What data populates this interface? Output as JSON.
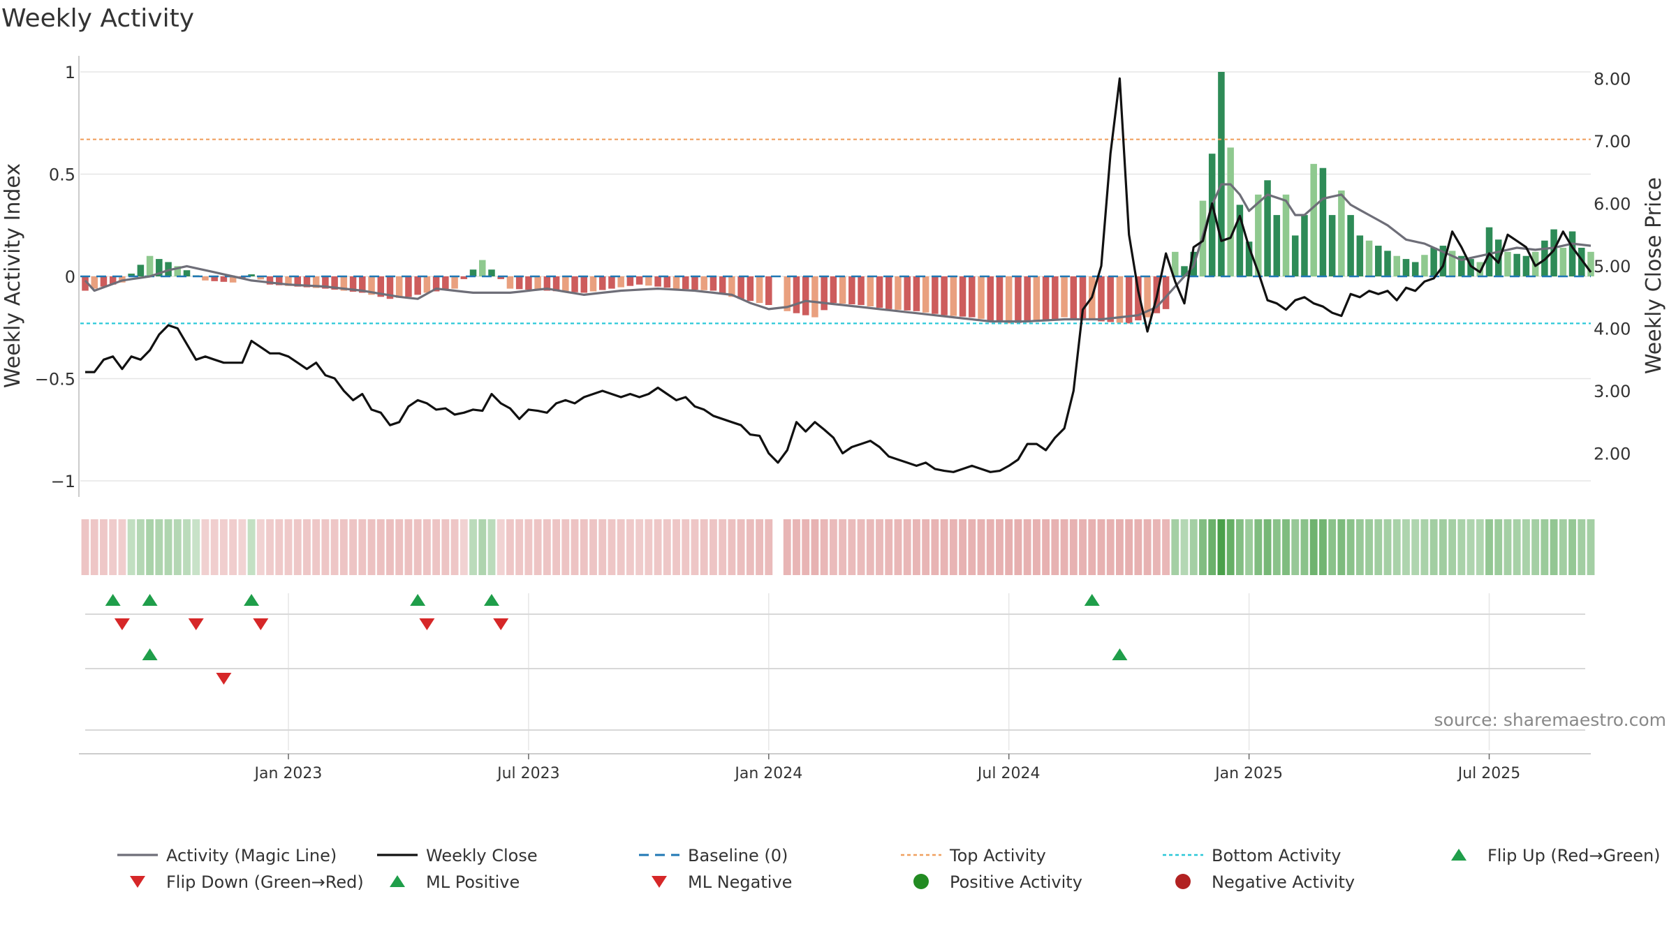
{
  "colors": {
    "pos_dark": "#2e8b57",
    "pos_light": "#8fc98f",
    "neg_dark": "#cd5c5c",
    "neg_light": "#e9a07f",
    "magic_line": "#6e6e78",
    "close_line": "#111111",
    "baseline": "#1f77b4",
    "top": "#f0a060",
    "bottom": "#2bc8d8",
    "flip_up": "#1f9e4a",
    "flip_down": "#d62728",
    "pos_dot": "#228b22",
    "neg_dot": "#b22222",
    "grid": "#e6e6e6",
    "text": "#333333",
    "source": "#888888"
  },
  "chart_data": {
    "type": "bar+line",
    "title": "Weekly Activity",
    "ylabel_left": "Weekly Activity Index",
    "ylabel_right": "Weekly Close Price",
    "left_ticks": [
      {
        "v": 1,
        "label": "1"
      },
      {
        "v": 0.5,
        "label": "0.5"
      },
      {
        "v": 0,
        "label": "0"
      },
      {
        "v": -0.5,
        "label": "−0.5"
      },
      {
        "v": -1,
        "label": "−1"
      }
    ],
    "right_ticks": [
      {
        "v": 8,
        "label": "8.00"
      },
      {
        "v": 7,
        "label": "7.00"
      },
      {
        "v": 6,
        "label": "6.00"
      },
      {
        "v": 5,
        "label": "5.00"
      },
      {
        "v": 4,
        "label": "4.00"
      },
      {
        "v": 3,
        "label": "3.00"
      },
      {
        "v": 2,
        "label": "2.00"
      }
    ],
    "x_ticks": [
      {
        "w": 22,
        "label": "Jan 2023"
      },
      {
        "w": 48,
        "label": "Jul 2023"
      },
      {
        "w": 74,
        "label": "Jan 2024"
      },
      {
        "w": 100,
        "label": "Jul 2024"
      },
      {
        "w": 126,
        "label": "Jan 2025"
      },
      {
        "w": 152,
        "label": "Jul 2025"
      }
    ],
    "top_activity": 0.67,
    "bottom_activity": -0.23,
    "baseline": 0,
    "activity_keys": [
      [
        0,
        -0.07
      ],
      [
        4,
        -0.03
      ],
      [
        7,
        0.1
      ],
      [
        9,
        0.07
      ],
      [
        11,
        0.03
      ],
      [
        13,
        -0.02
      ],
      [
        16,
        -0.03
      ],
      [
        18,
        0.01
      ],
      [
        20,
        -0.04
      ],
      [
        23,
        -0.05
      ],
      [
        26,
        -0.06
      ],
      [
        30,
        -0.08
      ],
      [
        33,
        -0.11
      ],
      [
        35,
        -0.1
      ],
      [
        37,
        -0.08
      ],
      [
        40,
        -0.06
      ],
      [
        43,
        0.08
      ],
      [
        46,
        -0.06
      ],
      [
        50,
        -0.07
      ],
      [
        54,
        -0.08
      ],
      [
        57,
        -0.06
      ],
      [
        60,
        -0.04
      ],
      [
        64,
        -0.06
      ],
      [
        68,
        -0.07
      ],
      [
        70,
        -0.1
      ],
      [
        72,
        -0.12
      ],
      [
        74,
        -0.14
      ],
      [
        76,
        -0.17
      ],
      [
        79,
        -0.2
      ],
      [
        81,
        -0.13
      ],
      [
        84,
        -0.14
      ],
      [
        87,
        -0.16
      ],
      [
        90,
        -0.17
      ],
      [
        93,
        -0.19
      ],
      [
        96,
        -0.2
      ],
      [
        100,
        -0.23
      ],
      [
        104,
        -0.22
      ],
      [
        106,
        -0.2
      ],
      [
        110,
        -0.22
      ],
      [
        113,
        -0.23
      ],
      [
        115,
        -0.2
      ],
      [
        117,
        -0.16
      ],
      [
        118,
        0.12
      ],
      [
        119,
        0.05
      ],
      [
        120,
        0.12
      ],
      [
        121,
        0.37
      ],
      [
        122,
        0.6
      ],
      [
        123,
        1.0
      ],
      [
        124,
        0.63
      ],
      [
        125,
        0.35
      ],
      [
        126,
        0.17
      ],
      [
        127,
        0.4
      ],
      [
        128,
        0.47
      ],
      [
        129,
        0.3
      ],
      [
        130,
        0.4
      ],
      [
        131,
        0.2
      ],
      [
        132,
        0.3
      ],
      [
        133,
        0.55
      ],
      [
        134,
        0.53
      ],
      [
        135,
        0.3
      ],
      [
        136,
        0.42
      ],
      [
        137,
        0.3
      ],
      [
        138,
        0.2
      ],
      [
        140,
        0.15
      ],
      [
        142,
        0.1
      ],
      [
        144,
        0.07
      ],
      [
        146,
        0.14
      ],
      [
        147,
        0.15
      ],
      [
        149,
        0.1
      ],
      [
        151,
        0.07
      ],
      [
        152,
        0.24
      ],
      [
        154,
        0.12
      ],
      [
        156,
        0.1
      ],
      [
        157,
        0.12
      ],
      [
        159,
        0.23
      ],
      [
        160,
        0.14
      ],
      [
        161,
        0.22
      ],
      [
        162,
        0.14
      ],
      [
        163,
        0.12
      ]
    ],
    "magic_keys": [
      [
        0,
        -0.02
      ],
      [
        1,
        -0.07
      ],
      [
        4,
        -0.02
      ],
      [
        7,
        0.0
      ],
      [
        9,
        0.03
      ],
      [
        11,
        0.05
      ],
      [
        14,
        0.02
      ],
      [
        18,
        -0.02
      ],
      [
        22,
        -0.04
      ],
      [
        26,
        -0.05
      ],
      [
        30,
        -0.07
      ],
      [
        34,
        -0.1
      ],
      [
        36,
        -0.11
      ],
      [
        38,
        -0.06
      ],
      [
        42,
        -0.08
      ],
      [
        46,
        -0.08
      ],
      [
        50,
        -0.06
      ],
      [
        54,
        -0.09
      ],
      [
        58,
        -0.07
      ],
      [
        62,
        -0.06
      ],
      [
        66,
        -0.07
      ],
      [
        70,
        -0.09
      ],
      [
        72,
        -0.13
      ],
      [
        74,
        -0.16
      ],
      [
        76,
        -0.15
      ],
      [
        78,
        -0.12
      ],
      [
        82,
        -0.14
      ],
      [
        86,
        -0.16
      ],
      [
        90,
        -0.18
      ],
      [
        94,
        -0.2
      ],
      [
        98,
        -0.22
      ],
      [
        102,
        -0.22
      ],
      [
        106,
        -0.21
      ],
      [
        110,
        -0.21
      ],
      [
        114,
        -0.19
      ],
      [
        116,
        -0.15
      ],
      [
        118,
        -0.05
      ],
      [
        120,
        0.05
      ],
      [
        122,
        0.35
      ],
      [
        123,
        0.45
      ],
      [
        124,
        0.45
      ],
      [
        125,
        0.4
      ],
      [
        126,
        0.32
      ],
      [
        128,
        0.4
      ],
      [
        130,
        0.37
      ],
      [
        131,
        0.3
      ],
      [
        132,
        0.3
      ],
      [
        134,
        0.38
      ],
      [
        136,
        0.4
      ],
      [
        137,
        0.35
      ],
      [
        139,
        0.3
      ],
      [
        141,
        0.25
      ],
      [
        143,
        0.18
      ],
      [
        145,
        0.16
      ],
      [
        147,
        0.12
      ],
      [
        149,
        0.08
      ],
      [
        151,
        0.1
      ],
      [
        153,
        0.12
      ],
      [
        155,
        0.14
      ],
      [
        157,
        0.13
      ],
      [
        159,
        0.14
      ],
      [
        161,
        0.16
      ],
      [
        163,
        0.15
      ]
    ],
    "close_keys": [
      [
        0,
        3.3
      ],
      [
        1,
        3.3
      ],
      [
        2,
        3.5
      ],
      [
        3,
        3.55
      ],
      [
        4,
        3.35
      ],
      [
        5,
        3.55
      ],
      [
        6,
        3.5
      ],
      [
        7,
        3.65
      ],
      [
        8,
        3.9
      ],
      [
        9,
        4.05
      ],
      [
        10,
        4.0
      ],
      [
        11,
        3.75
      ],
      [
        12,
        3.5
      ],
      [
        13,
        3.55
      ],
      [
        14,
        3.5
      ],
      [
        15,
        3.45
      ],
      [
        16,
        3.45
      ],
      [
        17,
        3.45
      ],
      [
        18,
        3.8
      ],
      [
        19,
        3.7
      ],
      [
        20,
        3.6
      ],
      [
        21,
        3.6
      ],
      [
        22,
        3.55
      ],
      [
        23,
        3.45
      ],
      [
        24,
        3.35
      ],
      [
        25,
        3.45
      ],
      [
        26,
        3.25
      ],
      [
        27,
        3.2
      ],
      [
        28,
        3.0
      ],
      [
        29,
        2.85
      ],
      [
        30,
        2.95
      ],
      [
        31,
        2.7
      ],
      [
        32,
        2.65
      ],
      [
        33,
        2.45
      ],
      [
        34,
        2.5
      ],
      [
        35,
        2.75
      ],
      [
        36,
        2.85
      ],
      [
        37,
        2.8
      ],
      [
        38,
        2.7
      ],
      [
        39,
        2.72
      ],
      [
        40,
        2.62
      ],
      [
        41,
        2.65
      ],
      [
        42,
        2.7
      ],
      [
        43,
        2.68
      ],
      [
        44,
        2.95
      ],
      [
        45,
        2.8
      ],
      [
        46,
        2.72
      ],
      [
        47,
        2.55
      ],
      [
        48,
        2.7
      ],
      [
        49,
        2.68
      ],
      [
        50,
        2.65
      ],
      [
        51,
        2.8
      ],
      [
        52,
        2.85
      ],
      [
        53,
        2.8
      ],
      [
        54,
        2.9
      ],
      [
        55,
        2.95
      ],
      [
        56,
        3.0
      ],
      [
        57,
        2.95
      ],
      [
        58,
        2.9
      ],
      [
        59,
        2.95
      ],
      [
        60,
        2.9
      ],
      [
        61,
        2.95
      ],
      [
        62,
        3.05
      ],
      [
        63,
        2.95
      ],
      [
        64,
        2.85
      ],
      [
        65,
        2.9
      ],
      [
        66,
        2.75
      ],
      [
        67,
        2.7
      ],
      [
        68,
        2.6
      ],
      [
        69,
        2.55
      ],
      [
        70,
        2.5
      ],
      [
        71,
        2.45
      ],
      [
        72,
        2.3
      ],
      [
        73,
        2.28
      ],
      [
        74,
        2.0
      ],
      [
        75,
        1.85
      ],
      [
        76,
        2.05
      ],
      [
        77,
        2.5
      ],
      [
        78,
        2.35
      ],
      [
        79,
        2.5
      ],
      [
        80,
        2.38
      ],
      [
        81,
        2.25
      ],
      [
        82,
        2.0
      ],
      [
        83,
        2.1
      ],
      [
        84,
        2.15
      ],
      [
        85,
        2.2
      ],
      [
        86,
        2.1
      ],
      [
        87,
        1.95
      ],
      [
        88,
        1.9
      ],
      [
        89,
        1.85
      ],
      [
        90,
        1.8
      ],
      [
        91,
        1.85
      ],
      [
        92,
        1.75
      ],
      [
        93,
        1.72
      ],
      [
        94,
        1.7
      ],
      [
        95,
        1.75
      ],
      [
        96,
        1.8
      ],
      [
        97,
        1.75
      ],
      [
        98,
        1.7
      ],
      [
        99,
        1.72
      ],
      [
        100,
        1.8
      ],
      [
        101,
        1.9
      ],
      [
        102,
        2.15
      ],
      [
        103,
        2.15
      ],
      [
        104,
        2.05
      ],
      [
        105,
        2.25
      ],
      [
        106,
        2.4
      ],
      [
        107,
        3.0
      ],
      [
        108,
        4.3
      ],
      [
        109,
        4.5
      ],
      [
        110,
        5.0
      ],
      [
        111,
        6.8
      ],
      [
        112,
        8.0
      ],
      [
        113,
        5.5
      ],
      [
        114,
        4.6
      ],
      [
        115,
        3.95
      ],
      [
        116,
        4.5
      ],
      [
        117,
        5.2
      ],
      [
        118,
        4.75
      ],
      [
        119,
        4.4
      ],
      [
        120,
        5.3
      ],
      [
        121,
        5.4
      ],
      [
        122,
        6.0
      ],
      [
        123,
        5.4
      ],
      [
        124,
        5.45
      ],
      [
        125,
        5.8
      ],
      [
        126,
        5.3
      ],
      [
        127,
        4.9
      ],
      [
        128,
        4.45
      ],
      [
        129,
        4.4
      ],
      [
        130,
        4.3
      ],
      [
        131,
        4.45
      ],
      [
        132,
        4.5
      ],
      [
        133,
        4.4
      ],
      [
        134,
        4.35
      ],
      [
        135,
        4.25
      ],
      [
        136,
        4.2
      ],
      [
        137,
        4.55
      ],
      [
        138,
        4.5
      ],
      [
        139,
        4.6
      ],
      [
        140,
        4.55
      ],
      [
        141,
        4.6
      ],
      [
        142,
        4.45
      ],
      [
        143,
        4.65
      ],
      [
        144,
        4.6
      ],
      [
        145,
        4.75
      ],
      [
        146,
        4.8
      ],
      [
        147,
        5.0
      ],
      [
        148,
        5.55
      ],
      [
        149,
        5.3
      ],
      [
        150,
        5.0
      ],
      [
        151,
        4.9
      ],
      [
        152,
        5.2
      ],
      [
        153,
        5.05
      ],
      [
        154,
        5.5
      ],
      [
        155,
        5.4
      ],
      [
        156,
        5.3
      ],
      [
        157,
        5.0
      ],
      [
        158,
        5.1
      ],
      [
        159,
        5.25
      ],
      [
        160,
        5.55
      ],
      [
        161,
        5.3
      ],
      [
        162,
        5.1
      ],
      [
        163,
        4.9
      ]
    ],
    "strip_gap_week": 75,
    "events": {
      "row1_flip_up": [
        3,
        7,
        18,
        36,
        44,
        109
      ],
      "row1_flip_down": [
        4,
        12,
        19,
        37,
        45
      ],
      "row2_ml_positive": [
        7,
        112
      ],
      "row2_ml_negative": [
        15
      ]
    },
    "source_text": "source: sharemaestro.com",
    "legend": [
      {
        "kind": "line",
        "color_key": "magic_line",
        "label": "Activity (Magic Line)"
      },
      {
        "kind": "line",
        "color_key": "close_line",
        "label": "Weekly Close"
      },
      {
        "kind": "dashed",
        "color_key": "baseline",
        "label": "Baseline (0)"
      },
      {
        "kind": "dotted",
        "color_key": "top",
        "label": "Top Activity"
      },
      {
        "kind": "dotted",
        "color_key": "bottom",
        "label": "Bottom Activity"
      },
      {
        "kind": "tri-up",
        "color_key": "flip_up",
        "label": "Flip Up (Red→Green)"
      },
      {
        "kind": "tri-down",
        "color_key": "flip_down",
        "label": "Flip Down (Green→Red)"
      },
      {
        "kind": "tri-up",
        "color_key": "flip_up",
        "label": "ML Positive"
      },
      {
        "kind": "tri-down",
        "color_key": "flip_down",
        "label": "ML Negative"
      },
      {
        "kind": "dot",
        "color_key": "pos_dot",
        "label": "Positive Activity"
      },
      {
        "kind": "dot",
        "color_key": "neg_dot",
        "label": "Negative Activity"
      }
    ]
  }
}
